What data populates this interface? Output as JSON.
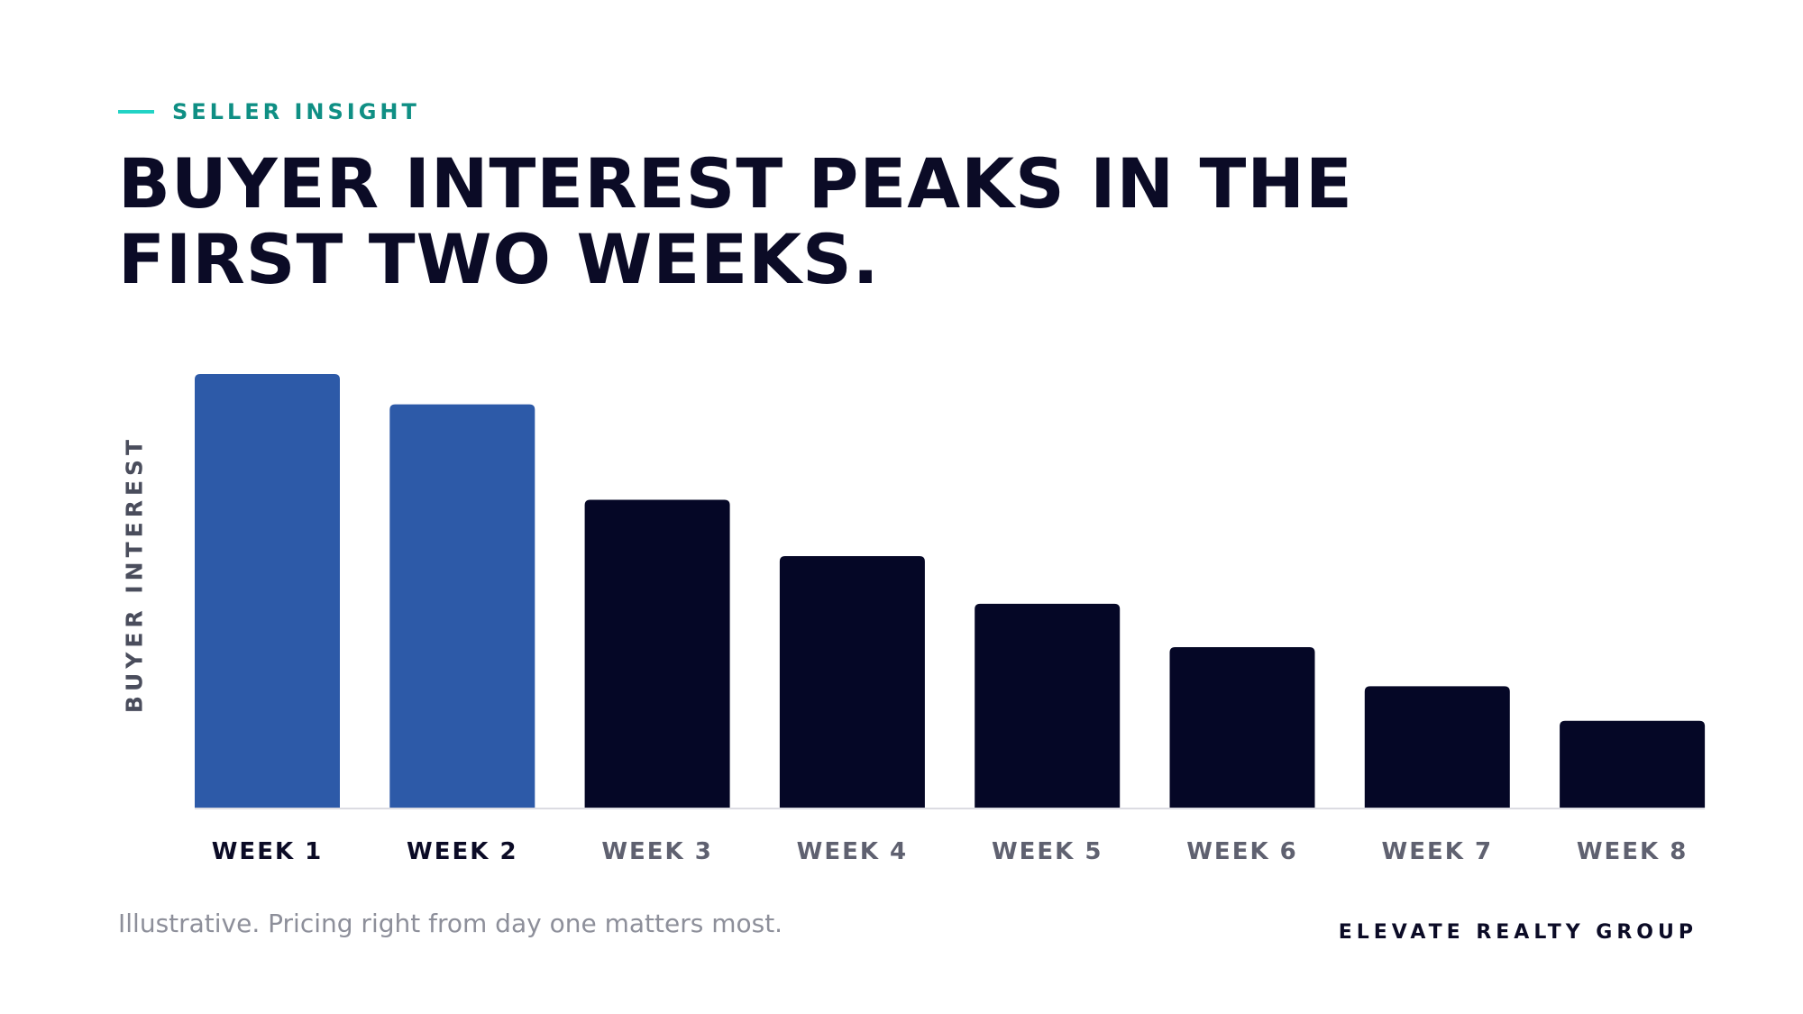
{
  "eyebrow": {
    "label": "SELLER INSIGHT",
    "accent_color": "#22d3c5",
    "text_color": "#0f8f84"
  },
  "title": {
    "line1": "BUYER INTEREST PEAKS IN THE",
    "line2": "FIRST TWO WEEKS."
  },
  "footnote": "Illustrative. Pricing right from day one matters most.",
  "brand": "ELEVATE REALTY GROUP",
  "colors": {
    "highlight_bar": "#2d5aa8",
    "default_bar": "#050726",
    "baseline": "#dcdce2",
    "label_highlight": "#0b0b26",
    "label_default": "#5f6170"
  },
  "chart_data": {
    "type": "bar",
    "categories": [
      "WEEK 1",
      "WEEK 2",
      "WEEK 3",
      "WEEK 4",
      "WEEK 5",
      "WEEK 6",
      "WEEK 7",
      "WEEK 8"
    ],
    "values": [
      100,
      93,
      71,
      58,
      47,
      37,
      28,
      20
    ],
    "highlighted": [
      true,
      true,
      false,
      false,
      false,
      false,
      false,
      false
    ],
    "ylabel": "BUYER INTEREST",
    "xlabel": "",
    "ylim": [
      0,
      100
    ],
    "grid": false,
    "legend": "none"
  }
}
